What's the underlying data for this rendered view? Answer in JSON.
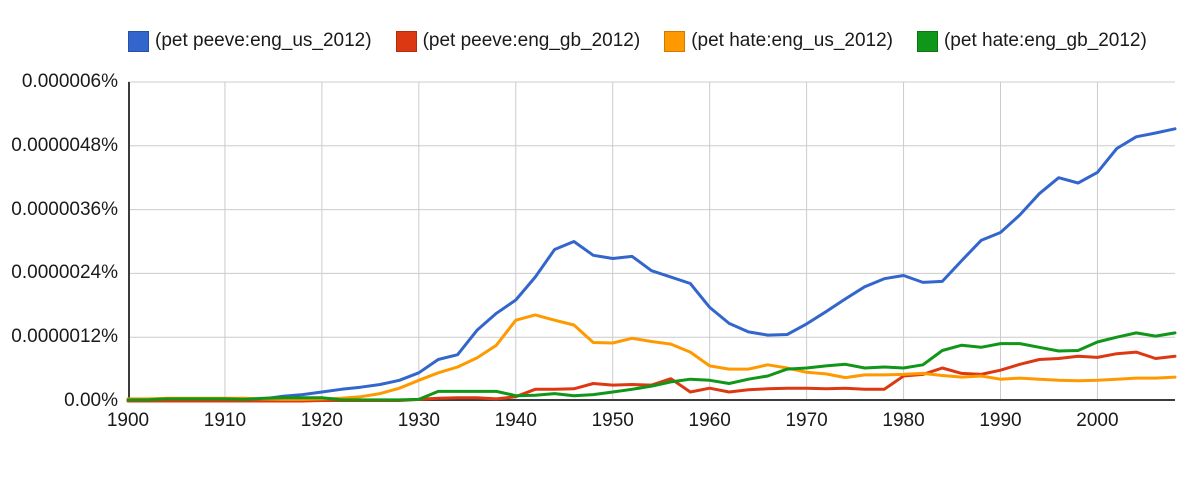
{
  "chart_data": {
    "type": "line",
    "title": "",
    "x_label": "",
    "y_label": "",
    "x_range": [
      1900,
      2008
    ],
    "y_range": [
      0,
      6
    ],
    "y_unit": "percent x 10^-6",
    "grid": true,
    "legend_position": "top",
    "grid_color": "#cccccc",
    "axis_color": "#3b3b3b",
    "x_ticks": [
      {
        "value": 1900,
        "label": "1900"
      },
      {
        "value": 1910,
        "label": "1910"
      },
      {
        "value": 1920,
        "label": "1920"
      },
      {
        "value": 1930,
        "label": "1930"
      },
      {
        "value": 1940,
        "label": "1940"
      },
      {
        "value": 1950,
        "label": "1950"
      },
      {
        "value": 1960,
        "label": "1960"
      },
      {
        "value": 1970,
        "label": "1970"
      },
      {
        "value": 1980,
        "label": "1980"
      },
      {
        "value": 1990,
        "label": "1990"
      },
      {
        "value": 2000,
        "label": "2000"
      }
    ],
    "y_ticks": [
      {
        "value": 0,
        "label": "0.00%"
      },
      {
        "value": 1.2,
        "label": "0.0000012%"
      },
      {
        "value": 2.4,
        "label": "0.0000024%"
      },
      {
        "value": 3.6,
        "label": "0.0000036%"
      },
      {
        "value": 4.8,
        "label": "0.0000048%"
      },
      {
        "value": 6,
        "label": "0.000006%"
      }
    ],
    "x": [
      1900,
      1902,
      1904,
      1906,
      1908,
      1910,
      1912,
      1914,
      1916,
      1918,
      1920,
      1922,
      1924,
      1926,
      1928,
      1930,
      1932,
      1934,
      1936,
      1938,
      1940,
      1942,
      1944,
      1946,
      1948,
      1950,
      1952,
      1954,
      1956,
      1958,
      1960,
      1962,
      1964,
      1966,
      1968,
      1970,
      1972,
      1974,
      1976,
      1978,
      1980,
      1982,
      1984,
      1986,
      1988,
      1990,
      1992,
      1994,
      1996,
      1998,
      2000,
      2002,
      2004,
      2006,
      2008
    ],
    "series": [
      {
        "name": "(pet peeve:eng_us_2012)",
        "slug": "pet-peeve-eng-us-2012",
        "color": "#3366CC",
        "swatch_border": "#2952A3",
        "values": [
          0.01,
          0.01,
          0.01,
          0.01,
          0.01,
          0.02,
          0.02,
          0.04,
          0.09,
          0.12,
          0.17,
          0.22,
          0.26,
          0.31,
          0.39,
          0.53,
          0.78,
          0.87,
          1.33,
          1.65,
          1.9,
          2.33,
          2.85,
          3.0,
          2.74,
          2.68,
          2.72,
          2.45,
          2.33,
          2.21,
          1.76,
          1.46,
          1.3,
          1.24,
          1.25,
          1.45,
          1.68,
          1.92,
          2.15,
          2.3,
          2.36,
          2.23,
          2.25,
          2.64,
          3.02,
          3.17,
          3.5,
          3.9,
          4.2,
          4.1,
          4.3,
          4.75,
          4.97,
          5.04,
          5.12
        ]
      },
      {
        "name": "(pet peeve:eng_gb_2012)",
        "slug": "pet-peeve-eng-gb-2012",
        "color": "#DC3912",
        "swatch_border": "#B02E0E",
        "values": [
          0,
          0,
          0,
          0,
          0,
          0,
          0,
          0,
          0,
          0,
          0.01,
          0.01,
          0.01,
          0.01,
          0.01,
          0.03,
          0.05,
          0.06,
          0.06,
          0.04,
          0.08,
          0.22,
          0.22,
          0.23,
          0.33,
          0.3,
          0.31,
          0.3,
          0.42,
          0.17,
          0.24,
          0.17,
          0.21,
          0.23,
          0.24,
          0.24,
          0.23,
          0.24,
          0.22,
          0.22,
          0.47,
          0.5,
          0.62,
          0.52,
          0.5,
          0.58,
          0.69,
          0.78,
          0.8,
          0.84,
          0.82,
          0.89,
          0.92,
          0.8,
          0.84
        ]
      },
      {
        "name": "(pet hate:eng_us_2012)",
        "slug": "pet-hate-eng-us-2012",
        "color": "#FF9900",
        "swatch_border": "#CC7A00",
        "values": [
          0.04,
          0.04,
          0.05,
          0.05,
          0.05,
          0.05,
          0.05,
          0.04,
          0.03,
          0.03,
          0.04,
          0.05,
          0.08,
          0.14,
          0.24,
          0.39,
          0.53,
          0.64,
          0.81,
          1.05,
          1.52,
          1.62,
          1.52,
          1.43,
          1.1,
          1.09,
          1.18,
          1.12,
          1.07,
          0.92,
          0.66,
          0.6,
          0.6,
          0.68,
          0.62,
          0.54,
          0.51,
          0.44,
          0.49,
          0.49,
          0.5,
          0.52,
          0.48,
          0.45,
          0.47,
          0.41,
          0.43,
          0.41,
          0.39,
          0.38,
          0.39,
          0.41,
          0.43,
          0.43,
          0.45
        ]
      },
      {
        "name": "(pet hate:eng_gb_2012)",
        "slug": "pet-hate-eng-gb-2012",
        "color": "#109618",
        "swatch_border": "#0C7512",
        "values": [
          0.02,
          0.02,
          0.04,
          0.04,
          0.04,
          0.04,
          0.03,
          0.05,
          0.06,
          0.06,
          0.06,
          0.02,
          0.02,
          0.02,
          0.02,
          0.03,
          0.18,
          0.18,
          0.18,
          0.18,
          0.1,
          0.11,
          0.14,
          0.1,
          0.12,
          0.17,
          0.22,
          0.28,
          0.36,
          0.41,
          0.39,
          0.33,
          0.41,
          0.47,
          0.6,
          0.62,
          0.66,
          0.69,
          0.62,
          0.64,
          0.62,
          0.68,
          0.95,
          1.05,
          1.01,
          1.08,
          1.08,
          1.01,
          0.94,
          0.95,
          1.11,
          1.2,
          1.28,
          1.22,
          1.28
        ]
      }
    ]
  }
}
